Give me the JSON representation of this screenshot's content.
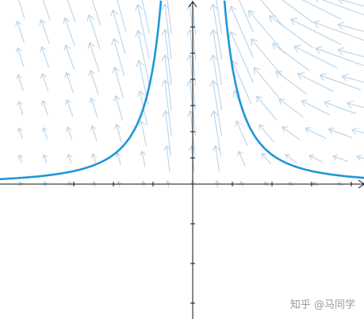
{
  "watermark": "知乎 @马同学"
}
